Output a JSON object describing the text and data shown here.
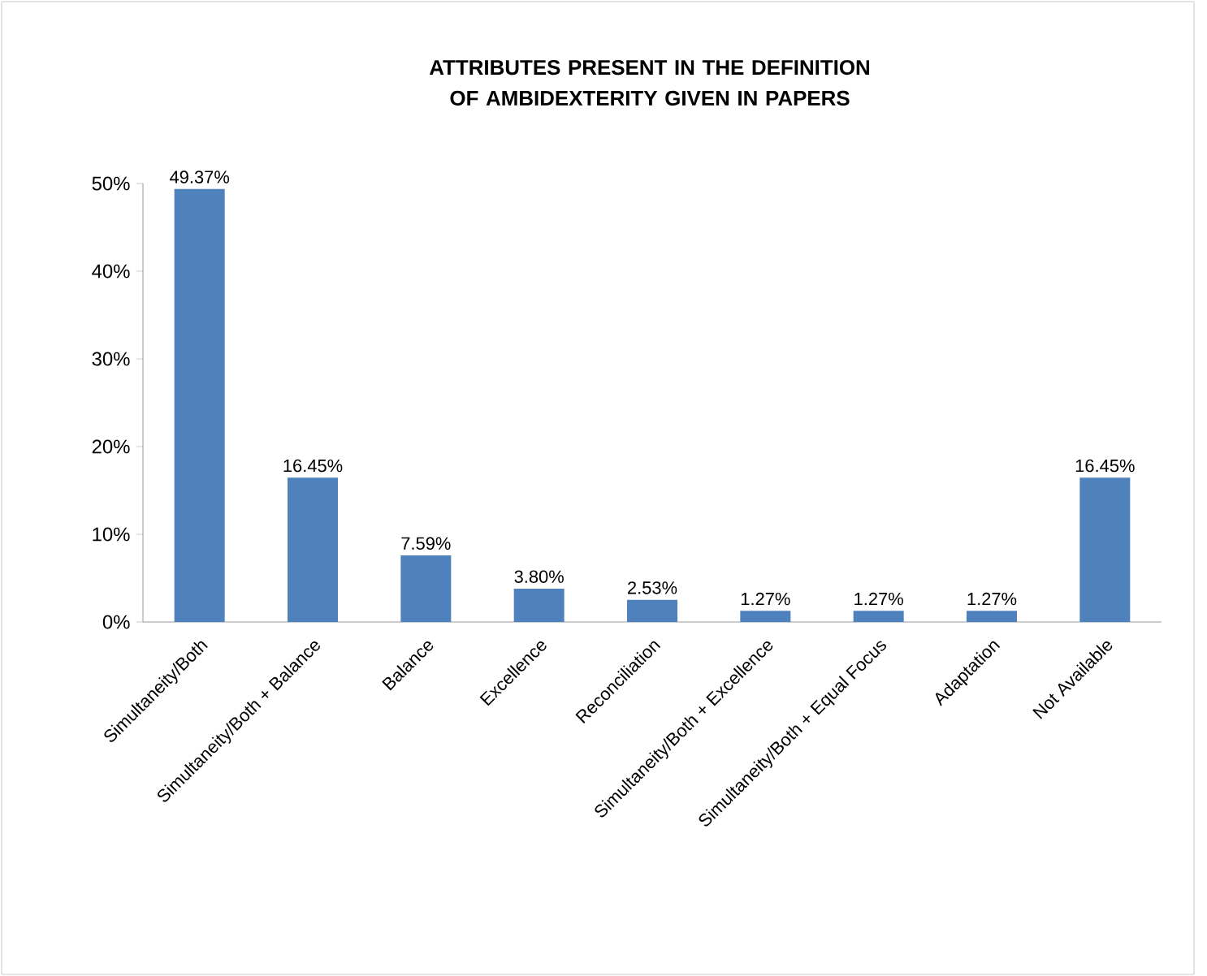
{
  "chart_data": {
    "type": "bar",
    "title": "ATTRIBUTES PRESENT IN THE DEFINITION OF AMBIDEXTERITY GIVEN IN PAPERS",
    "categories": [
      "Simultaneity/Both",
      "Simultaneity/Both + Balance",
      "Balance",
      "Excellence",
      "Reconciliation",
      "Simultaneity/Both + Excellence",
      "Simultaneity/Both + Equal Focus",
      "Adaptation",
      "Not Available"
    ],
    "values": [
      49.37,
      16.45,
      7.59,
      3.8,
      2.53,
      1.27,
      1.27,
      1.27,
      16.45
    ],
    "value_labels": [
      "49.37%",
      "16.45%",
      "7.59%",
      "3.80%",
      "2.53%",
      "1.27%",
      "1.27%",
      "1.27%",
      "16.45%"
    ],
    "color": "#4f81bd",
    "ylim": [
      0,
      50
    ],
    "yticks": [
      {
        "value": 0,
        "label": "0%"
      },
      {
        "value": 10,
        "label": "10%"
      },
      {
        "value": 20,
        "label": "20%"
      },
      {
        "value": 30,
        "label": "30%"
      },
      {
        "value": 40,
        "label": "40%"
      },
      {
        "value": 50,
        "label": "50%"
      }
    ]
  }
}
